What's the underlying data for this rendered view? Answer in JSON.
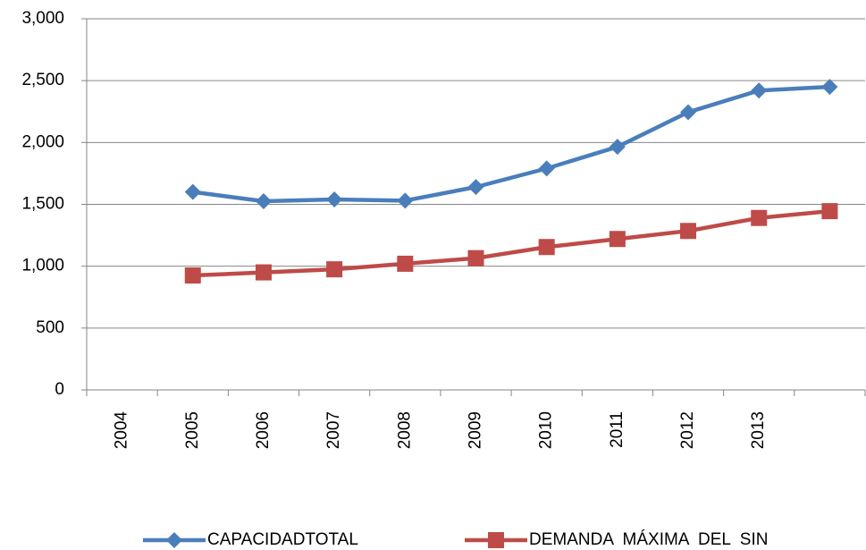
{
  "chart_data": {
    "type": "line",
    "categories": [
      "2004",
      "2005",
      "2006",
      "2007",
      "2008",
      "2009",
      "2010",
      "2011",
      "2012",
      "2013",
      null
    ],
    "series": [
      {
        "name": "CAPACIDADTOTAL",
        "color": "#4a7ebb",
        "marker": "diamond",
        "values": [
          null,
          1600,
          1525,
          1540,
          1530,
          1640,
          1790,
          1965,
          2245,
          2420,
          2450
        ]
      },
      {
        "name": "DEMANDA  MÁXIMA  DEL  SIN",
        "color": "#be4b48",
        "marker": "square",
        "values": [
          null,
          925,
          950,
          975,
          1020,
          1065,
          1155,
          1220,
          1285,
          1390,
          1445
        ]
      }
    ],
    "ylim": [
      0,
      3000
    ],
    "yticks": [
      0,
      500,
      {
        "value": 1000,
        "label": "1,000"
      },
      {
        "value": 1500,
        "label": "1,500"
      },
      {
        "value": 2000,
        "label": "2,000"
      },
      {
        "value": 2500,
        "label": "2,500"
      },
      {
        "value": 3000,
        "label": "3,000"
      }
    ],
    "grid": true,
    "legend": "bottom"
  }
}
